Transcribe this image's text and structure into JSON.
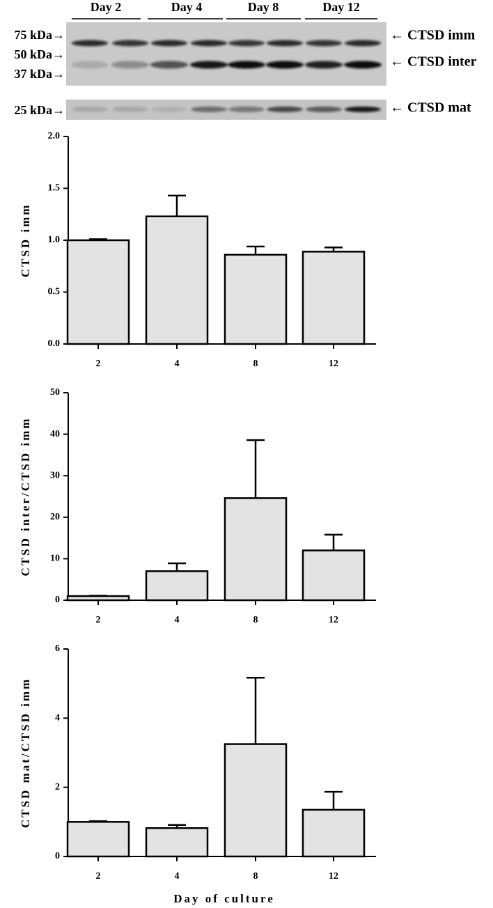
{
  "blot": {
    "days": [
      "Day 2",
      "Day 4",
      "Day 8",
      "Day 12"
    ],
    "markers": [
      "75 kDa→",
      "50 kDa→",
      "37 kDa→",
      "25 kDa→"
    ],
    "bands": [
      "← CTSD imm",
      "← CTSD inter",
      "← CTSD mat"
    ]
  },
  "chart_data": [
    {
      "type": "bar",
      "ylabel": "CTSD imm",
      "categories": [
        "2",
        "4",
        "8",
        "12"
      ],
      "values": [
        1.0,
        1.23,
        0.86,
        0.89
      ],
      "errors": [
        0.01,
        0.2,
        0.08,
        0.04
      ],
      "color": "#e3e3e3",
      "ylim": [
        0,
        2
      ],
      "yticks": [
        {
          "value": 0,
          "label": "0.0"
        },
        {
          "value": 0.5,
          "label": "0.5"
        },
        {
          "value": 1,
          "label": "1.0"
        },
        {
          "value": 1.5,
          "label": "1.5"
        },
        {
          "value": 2,
          "label": "2.0"
        }
      ]
    },
    {
      "type": "bar",
      "ylabel": "CTSD inter/CTSD imm",
      "categories": [
        "2",
        "4",
        "8",
        "12"
      ],
      "values": [
        1.0,
        7.0,
        24.6,
        12.0
      ],
      "errors": [
        0.1,
        1.9,
        14.0,
        3.8
      ],
      "color": "#e3e3e3",
      "ylim": [
        0,
        50
      ],
      "yticks": [
        0,
        10,
        20,
        30,
        40,
        50
      ]
    },
    {
      "type": "bar",
      "ylabel": "CTSD mat/CTSD imm",
      "xlabel": "Day of culture",
      "categories": [
        "2",
        "4",
        "8",
        "12"
      ],
      "values": [
        1.0,
        0.82,
        3.25,
        1.35
      ],
      "errors": [
        0.02,
        0.09,
        1.92,
        0.52
      ],
      "color": "#e3e3e3",
      "ylim": [
        0,
        6
      ],
      "yticks": [
        0,
        2,
        4,
        6
      ]
    }
  ]
}
